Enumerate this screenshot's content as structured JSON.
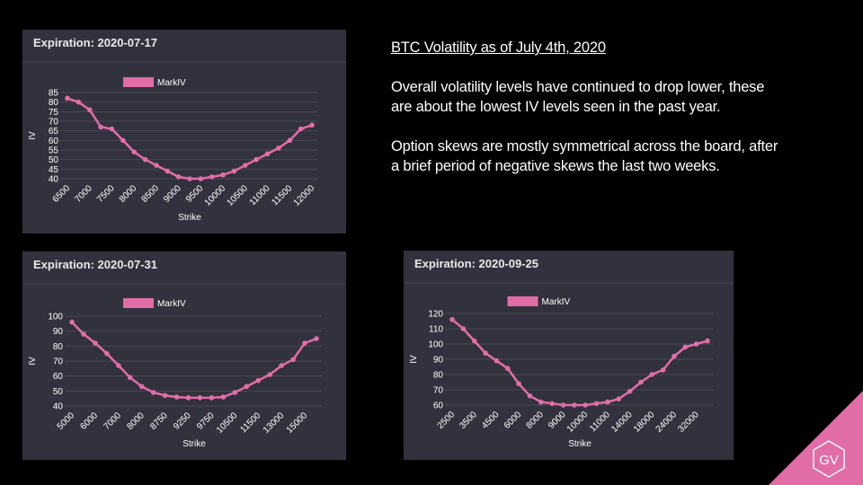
{
  "chart_data": [
    {
      "type": "line",
      "title": "Expiration: 2020-07-17",
      "xlabel": "Strike",
      "ylabel": "IV",
      "categories": [
        "6500",
        null,
        "7000",
        null,
        "7500",
        null,
        "8000",
        null,
        "8500",
        null,
        "9000",
        null,
        "9500",
        null,
        "10000",
        null,
        "10500",
        null,
        "11000",
        null,
        "11500",
        null,
        "12000"
      ],
      "series": [
        {
          "name": "MarkIV",
          "color": "#e26da6",
          "values": [
            82,
            80,
            76,
            67,
            66,
            60,
            54,
            50,
            47,
            44,
            41,
            40,
            40,
            41,
            42,
            44,
            47,
            50,
            53,
            56,
            60,
            66,
            68
          ]
        }
      ],
      "ylim": [
        40,
        85
      ],
      "yticks": [
        40,
        45,
        50,
        55,
        60,
        65,
        70,
        75,
        80,
        85
      ],
      "grid": true
    },
    {
      "type": "line",
      "title": "Expiration: 2020-07-31",
      "xlabel": "Strike",
      "ylabel": "IV",
      "categories": [
        "5000",
        null,
        "6000",
        null,
        "7000",
        null,
        "8000",
        null,
        "8750",
        null,
        "9250",
        null,
        "9750",
        null,
        "10500",
        null,
        "11500",
        null,
        "13000",
        null,
        "15000",
        null
      ],
      "series": [
        {
          "name": "MarkIV",
          "color": "#e26da6",
          "values": [
            96,
            88,
            82,
            75,
            67,
            59,
            53,
            49,
            47,
            46,
            45.5,
            45.5,
            45.5,
            46,
            49,
            53,
            57,
            61,
            67,
            71,
            82,
            85
          ]
        }
      ],
      "ylim": [
        40,
        100
      ],
      "yticks": [
        40,
        50,
        60,
        70,
        80,
        90,
        100
      ],
      "grid": true
    },
    {
      "type": "line",
      "title": "Expiration: 2020-09-25",
      "xlabel": "Strike",
      "ylabel": "IV",
      "categories": [
        "2500",
        null,
        "3500",
        null,
        "4500",
        null,
        "6000",
        null,
        "8000",
        null,
        "9000",
        null,
        "10000",
        null,
        "11000",
        null,
        "14000",
        null,
        "18000",
        null,
        "24000",
        null,
        "32000",
        null
      ],
      "series": [
        {
          "name": "MarkIV",
          "color": "#e26da6",
          "values": [
            116,
            110,
            102,
            94,
            89,
            84,
            74,
            66,
            62,
            61,
            60,
            60,
            60,
            61,
            62,
            64,
            69,
            75,
            80,
            83,
            92,
            98,
            100,
            102
          ]
        }
      ],
      "ylim": [
        60,
        120
      ],
      "yticks": [
        60,
        70,
        80,
        90,
        100,
        110,
        120
      ],
      "grid": true
    }
  ],
  "text_panel": {
    "title": "BTC Volatility as of July 4th, 2020",
    "paragraphs": [
      "Overall volatility levels have continued to drop lower, these are about the lowest IV levels seen in the past year.",
      "Option skews are mostly symmetrical across the board, after a brief period of negative skews the last two weeks."
    ]
  },
  "logo": "GV"
}
